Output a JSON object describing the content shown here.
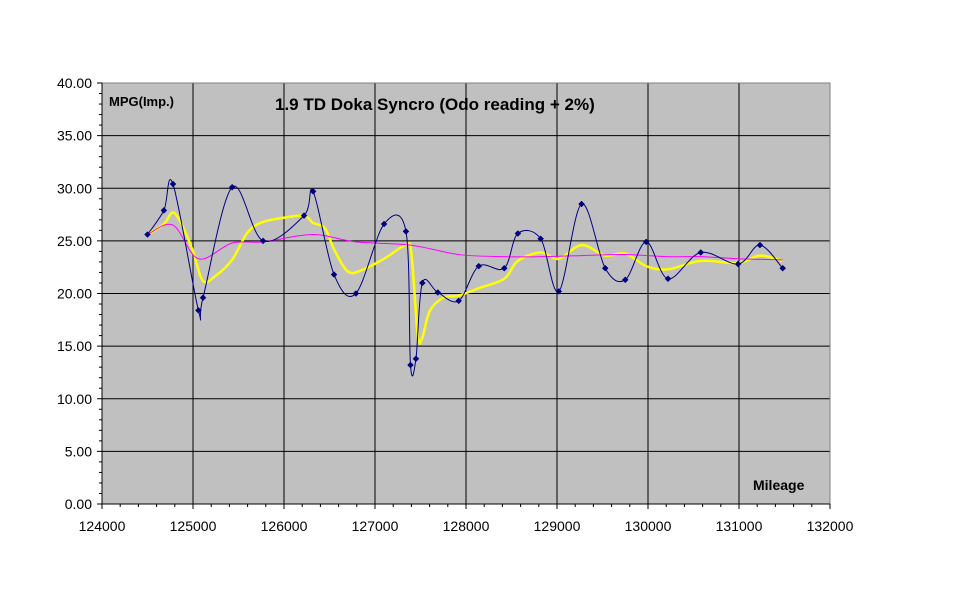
{
  "chart_data": {
    "type": "line",
    "title": "1.9 TD Doka Syncro (Odo reading + 2%)",
    "xlabel": "Mileage",
    "ylabel": "MPG(Imp.)",
    "xlim": [
      124000,
      132000
    ],
    "ylim": [
      0,
      40
    ],
    "x_ticks": [
      "124000",
      "125000",
      "126000",
      "127000",
      "128000",
      "129000",
      "130000",
      "131000",
      "132000"
    ],
    "y_ticks": [
      "0.00",
      "5.00",
      "10.00",
      "15.00",
      "20.00",
      "25.00",
      "30.00",
      "35.00",
      "40.00"
    ],
    "grid": true,
    "legend": "none",
    "plot_background": "#c0c0c0",
    "series": [
      {
        "color": "#000080",
        "markers": true,
        "smooth": true,
        "points": [
          [
            124500,
            25.6
          ],
          [
            124680,
            27.9
          ],
          [
            124780,
            30.4
          ],
          [
            125060,
            18.4
          ],
          [
            125110,
            19.6
          ],
          [
            125430,
            30.1
          ],
          [
            125770,
            25.0
          ],
          [
            126220,
            27.4
          ],
          [
            126320,
            29.7
          ],
          [
            126550,
            21.8
          ],
          [
            126790,
            20.0
          ],
          [
            127100,
            26.6
          ],
          [
            127340,
            25.9
          ],
          [
            127390,
            13.2
          ],
          [
            127450,
            13.8
          ],
          [
            127520,
            21.0
          ],
          [
            127690,
            20.1
          ],
          [
            127920,
            19.3
          ],
          [
            128140,
            22.6
          ],
          [
            128420,
            22.4
          ],
          [
            128570,
            25.7
          ],
          [
            128820,
            25.2
          ],
          [
            129020,
            20.2
          ],
          [
            129270,
            28.5
          ],
          [
            129530,
            22.4
          ],
          [
            129750,
            21.3
          ],
          [
            129980,
            24.9
          ],
          [
            130220,
            21.4
          ],
          [
            130580,
            23.9
          ],
          [
            130990,
            22.8
          ],
          [
            131230,
            24.6
          ],
          [
            131480,
            22.4
          ]
        ]
      },
      {
        "color": "#ffff00",
        "markers": false,
        "smooth": true,
        "points": [
          [
            124500,
            25.6
          ],
          [
            124680,
            26.6
          ],
          [
            124780,
            27.7
          ],
          [
            124880,
            26.5
          ],
          [
            125000,
            24.0
          ],
          [
            125110,
            21.2
          ],
          [
            125250,
            21.7
          ],
          [
            125430,
            23.2
          ],
          [
            125600,
            25.8
          ],
          [
            125770,
            26.8
          ],
          [
            126000,
            27.2
          ],
          [
            126220,
            27.4
          ],
          [
            126320,
            26.7
          ],
          [
            126450,
            26.2
          ],
          [
            126550,
            24.2
          ],
          [
            126700,
            22.1
          ],
          [
            126850,
            22.2
          ],
          [
            127100,
            23.3
          ],
          [
            127340,
            24.6
          ],
          [
            127400,
            23.8
          ],
          [
            127470,
            16.0
          ],
          [
            127520,
            15.8
          ],
          [
            127600,
            18.3
          ],
          [
            127750,
            19.6
          ],
          [
            127920,
            19.8
          ],
          [
            128140,
            20.5
          ],
          [
            128420,
            21.4
          ],
          [
            128570,
            23.1
          ],
          [
            128820,
            23.9
          ],
          [
            129020,
            23.3
          ],
          [
            129270,
            24.6
          ],
          [
            129530,
            23.6
          ],
          [
            129750,
            23.8
          ],
          [
            129980,
            22.6
          ],
          [
            130220,
            22.3
          ],
          [
            130580,
            23.1
          ],
          [
            130990,
            22.9
          ],
          [
            131230,
            23.6
          ],
          [
            131480,
            23.1
          ]
        ]
      },
      {
        "color": "#ff00ff",
        "markers": false,
        "smooth": true,
        "points": [
          [
            124500,
            25.6
          ],
          [
            124780,
            26.5
          ],
          [
            125060,
            23.3
          ],
          [
            125430,
            24.8
          ],
          [
            125770,
            24.9
          ],
          [
            126320,
            25.6
          ],
          [
            126790,
            24.9
          ],
          [
            127390,
            24.6
          ],
          [
            127920,
            23.7
          ],
          [
            128420,
            23.5
          ],
          [
            128820,
            23.5
          ],
          [
            129270,
            23.6
          ],
          [
            129750,
            23.7
          ],
          [
            130220,
            23.5
          ],
          [
            130580,
            23.5
          ],
          [
            130990,
            23.3
          ],
          [
            131480,
            23.2
          ]
        ]
      }
    ]
  }
}
